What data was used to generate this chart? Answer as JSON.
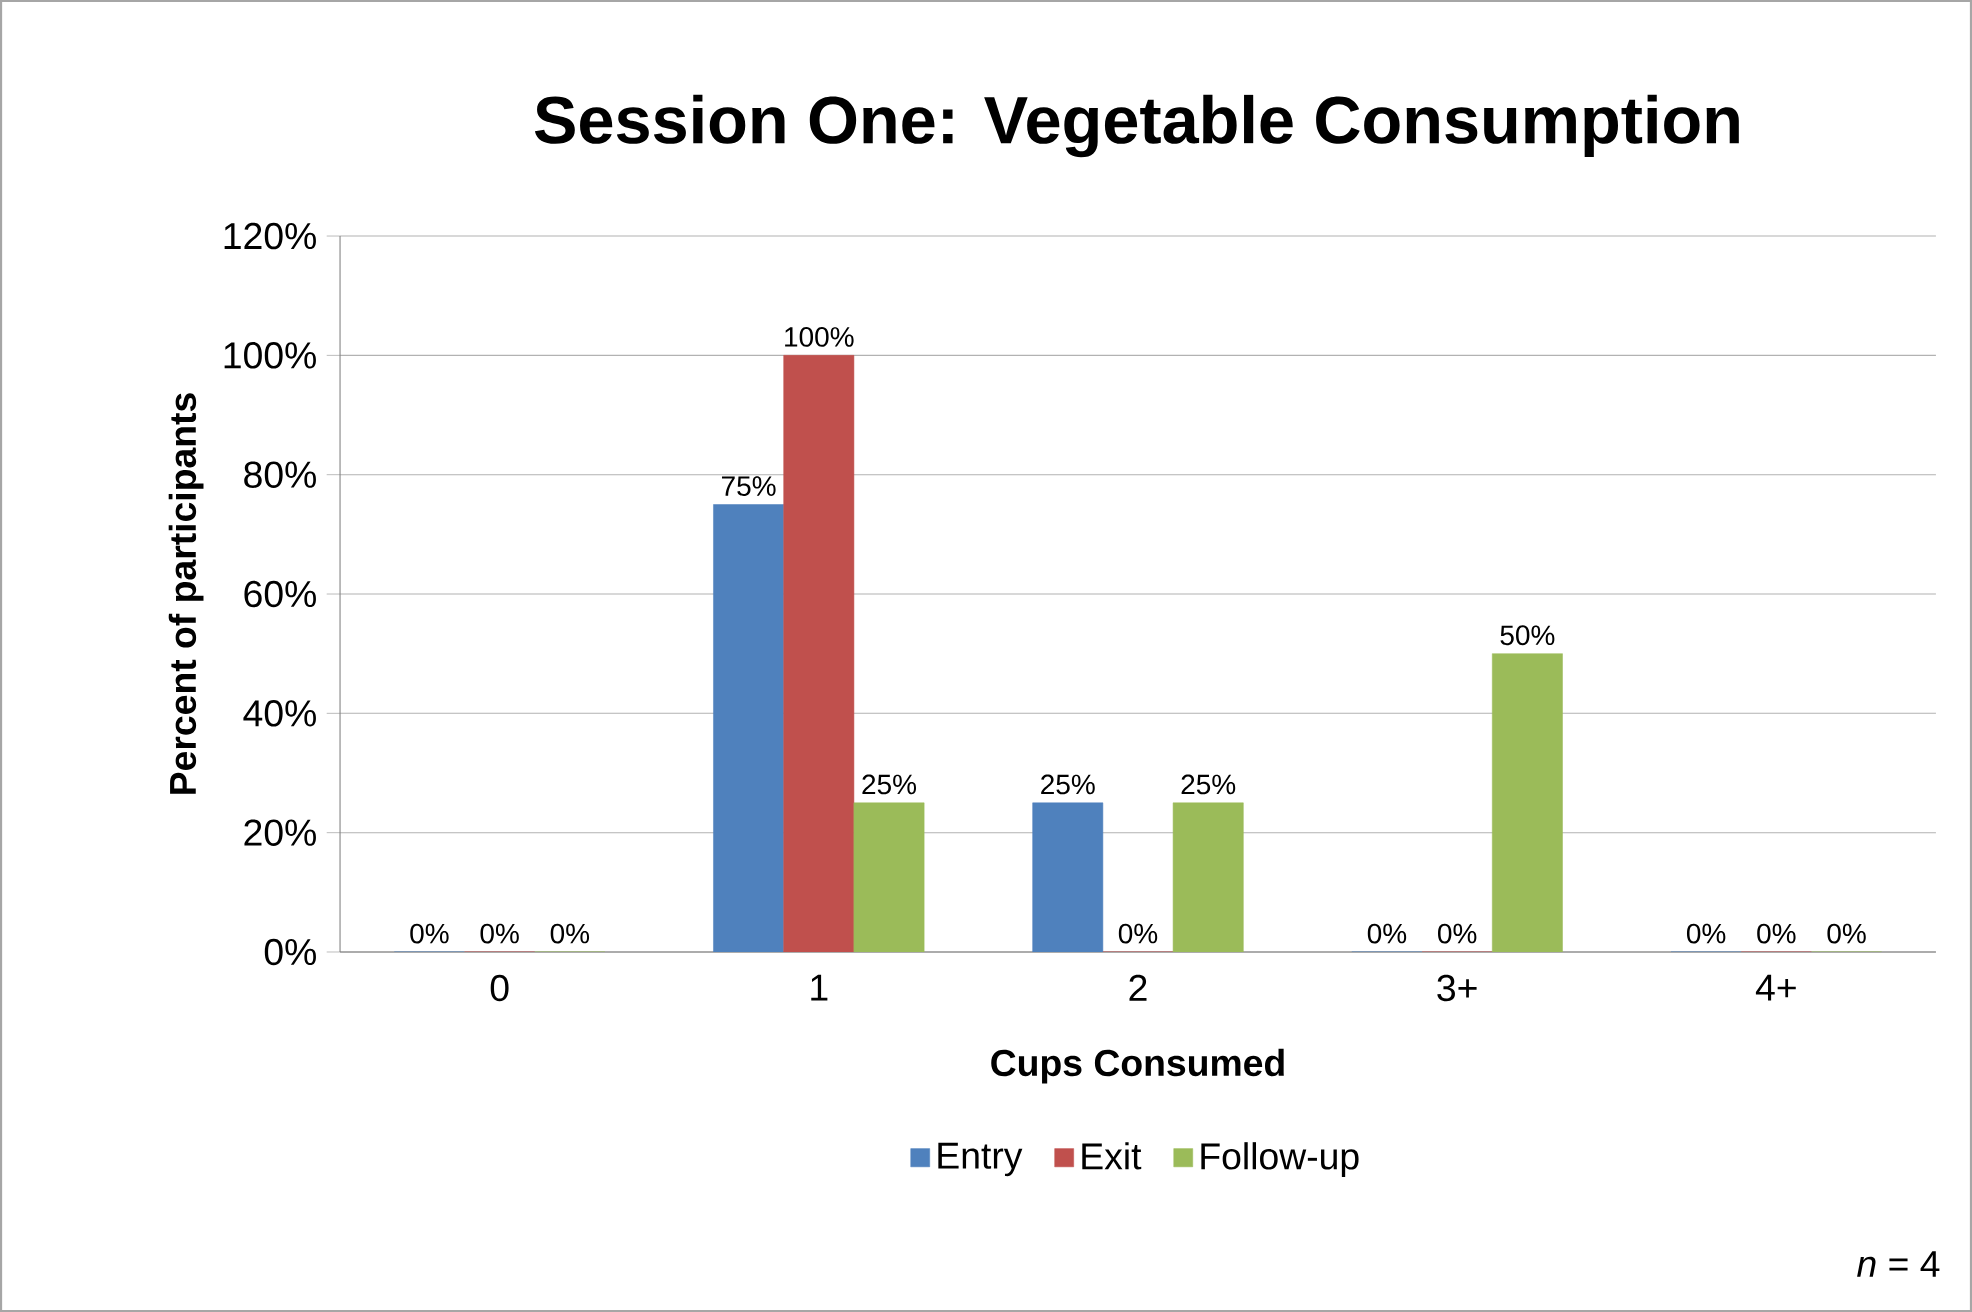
{
  "chart_data": {
    "type": "bar",
    "title": "Session One: Vegetable Consumption",
    "xlabel": "Cups Consumed",
    "ylabel": "Percent of participants",
    "categories": [
      "0",
      "1",
      "2",
      "3+",
      "4+"
    ],
    "series": [
      {
        "name": "Entry",
        "color": "#4f81bd",
        "values": [
          0,
          75,
          25,
          0,
          0
        ],
        "value_labels": [
          "0%",
          "75%",
          "25%",
          "0%",
          "0%"
        ]
      },
      {
        "name": "Exit",
        "color": "#c0504d",
        "values": [
          0,
          100,
          0,
          0,
          0
        ],
        "value_labels": [
          "0%",
          "100%",
          "0%",
          "0%",
          "0%"
        ]
      },
      {
        "name": "Follow-up",
        "color": "#9bbb59",
        "values": [
          0,
          25,
          25,
          50,
          0
        ],
        "value_labels": [
          "0%",
          "25%",
          "25%",
          "50%",
          "0%"
        ]
      }
    ],
    "ylim": [
      0,
      120
    ],
    "yticks": [
      {
        "value": 0,
        "label": "0%"
      },
      {
        "value": 20,
        "label": "20%"
      },
      {
        "value": 40,
        "label": "40%"
      },
      {
        "value": 60,
        "label": "60%"
      },
      {
        "value": 80,
        "label": "80%"
      },
      {
        "value": 100,
        "label": "100%"
      },
      {
        "value": 120,
        "label": "120%"
      }
    ],
    "grid": "y",
    "legend": "bottom",
    "annotations": [
      "*n* = 4"
    ]
  }
}
